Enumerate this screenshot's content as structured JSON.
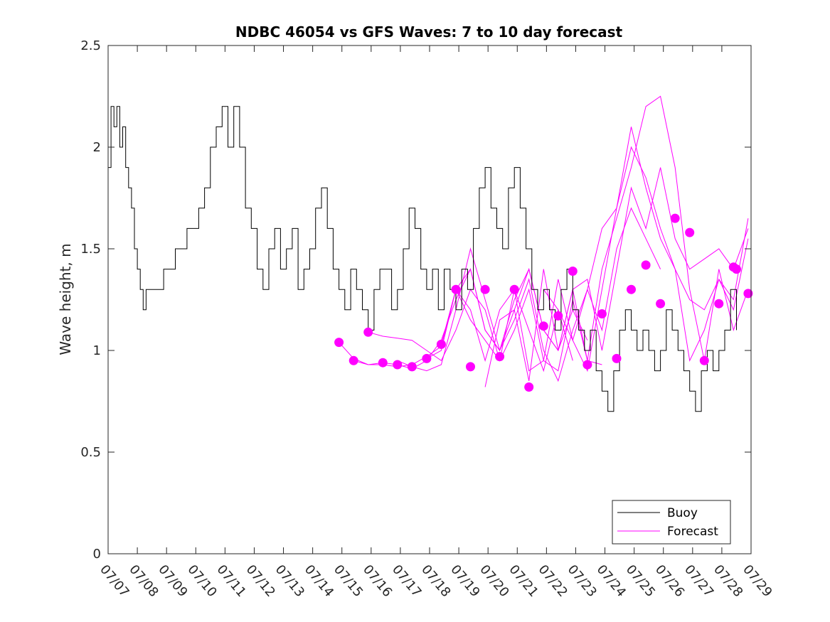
{
  "chart_data": {
    "type": "line",
    "title": "NDBC 46054 vs GFS Waves: 7 to 10 day forecast",
    "xlabel": "",
    "ylabel": "Wave height, m",
    "xlim": [
      "07/07",
      "07/29"
    ],
    "ylim": [
      0,
      2.5
    ],
    "xticks": [
      "07/07",
      "07/08",
      "07/09",
      "07/10",
      "07/11",
      "07/12",
      "07/13",
      "07/14",
      "07/15",
      "07/16",
      "07/17",
      "07/18",
      "07/19",
      "07/20",
      "07/21",
      "07/22",
      "07/23",
      "07/24",
      "07/25",
      "07/26",
      "07/27",
      "07/28",
      "07/29"
    ],
    "yticks": [
      "0",
      "0.5",
      "1",
      "1.5",
      "2",
      "2.5"
    ],
    "grid": false,
    "legend_position": "bottom-right",
    "colors": {
      "buoy": "#000000",
      "forecast": "#ff00ff"
    },
    "series": [
      {
        "name": "Buoy",
        "style": "line",
        "x": [
          0,
          0.1,
          0.2,
          0.3,
          0.4,
          0.5,
          0.6,
          0.7,
          0.8,
          0.9,
          1.0,
          1.1,
          1.2,
          1.3,
          1.5,
          1.7,
          1.9,
          2.1,
          2.3,
          2.5,
          2.7,
          2.9,
          3.1,
          3.3,
          3.5,
          3.7,
          3.9,
          4.1,
          4.3,
          4.5,
          4.7,
          4.9,
          5.1,
          5.3,
          5.5,
          5.7,
          5.9,
          6.1,
          6.3,
          6.5,
          6.7,
          6.9,
          7.1,
          7.3,
          7.5,
          7.7,
          7.9,
          8.1,
          8.3,
          8.5,
          8.7,
          8.9,
          9.1,
          9.3,
          9.5,
          9.7,
          9.9,
          10.1,
          10.3,
          10.5,
          10.7,
          10.9,
          11.1,
          11.3,
          11.5,
          11.7,
          11.9,
          12.1,
          12.3,
          12.5,
          12.7,
          12.9,
          13.1,
          13.3,
          13.5,
          13.7,
          13.9,
          14.1,
          14.3,
          14.5,
          14.7,
          14.9,
          15.1,
          15.3,
          15.5,
          15.7,
          15.9,
          16.1,
          16.3,
          16.5,
          16.7,
          16.9,
          17.1,
          17.3,
          17.5,
          17.7,
          17.9,
          18.1,
          18.3,
          18.5,
          18.7,
          18.9,
          19.1,
          19.3,
          19.5,
          19.7,
          19.9,
          20.1,
          20.3,
          20.5,
          20.7,
          20.9,
          21.1,
          21.3,
          21.5
        ],
        "y": [
          1.9,
          2.2,
          2.1,
          2.2,
          2.0,
          2.1,
          1.9,
          1.8,
          1.7,
          1.5,
          1.4,
          1.3,
          1.2,
          1.3,
          1.3,
          1.3,
          1.4,
          1.4,
          1.5,
          1.5,
          1.6,
          1.6,
          1.7,
          1.8,
          2.0,
          2.1,
          2.2,
          2.0,
          2.2,
          2.0,
          1.7,
          1.6,
          1.4,
          1.3,
          1.5,
          1.6,
          1.4,
          1.5,
          1.6,
          1.3,
          1.4,
          1.5,
          1.7,
          1.8,
          1.6,
          1.4,
          1.3,
          1.2,
          1.4,
          1.3,
          1.2,
          1.1,
          1.3,
          1.4,
          1.4,
          1.2,
          1.3,
          1.5,
          1.7,
          1.6,
          1.4,
          1.3,
          1.4,
          1.2,
          1.4,
          1.3,
          1.2,
          1.4,
          1.3,
          1.6,
          1.8,
          1.9,
          1.7,
          1.6,
          1.5,
          1.8,
          1.9,
          1.7,
          1.5,
          1.3,
          1.2,
          1.3,
          1.2,
          1.1,
          1.3,
          1.4,
          1.2,
          1.1,
          1.0,
          1.1,
          0.9,
          0.8,
          0.7,
          0.9,
          1.1,
          1.2,
          1.1,
          1.0,
          1.1,
          1.0,
          0.9,
          1.0,
          1.2,
          1.1,
          1.0,
          0.9,
          0.8,
          0.7,
          0.9,
          1.0,
          0.9,
          1.0,
          1.1,
          1.3,
          1.1
        ]
      },
      {
        "name": "Forecast",
        "style": "lines",
        "runs": [
          {
            "x": [
              7.9,
              8.4,
              8.9,
              9.4,
              9.9,
              10.4,
              10.9,
              11.4,
              11.9,
              12.4,
              12.9,
              13.4,
              13.9,
              14.4,
              14.9,
              15.4,
              15.9
            ],
            "y": [
              1.04,
              0.96,
              0.93,
              0.93,
              0.92,
              0.93,
              0.97,
              1.02,
              1.3,
              1.15,
              1.05,
              0.95,
              1.3,
              1.1,
              0.9,
              1.2,
              0.95
            ]
          },
          {
            "x": [
              8.4,
              8.9,
              9.4,
              9.9,
              10.4,
              10.9,
              11.4,
              11.9,
              12.4,
              12.9,
              13.4,
              13.9,
              14.4,
              14.9,
              15.4,
              15.9,
              16.4
            ],
            "y": [
              0.95,
              0.93,
              0.94,
              0.93,
              0.91,
              0.95,
              1.05,
              1.25,
              1.4,
              1.1,
              1.0,
              1.2,
              1.4,
              1.1,
              1.0,
              1.2,
              1.05
            ]
          },
          {
            "x": [
              8.9,
              9.4,
              9.9,
              10.4,
              10.9,
              11.4,
              11.9,
              12.4,
              12.9,
              13.4,
              13.9,
              14.4,
              14.9,
              15.4,
              15.9,
              16.4,
              16.9
            ],
            "y": [
              1.09,
              1.07,
              1.06,
              1.05,
              1.0,
              0.95,
              1.1,
              1.3,
              1.2,
              0.95,
              1.1,
              1.3,
              0.95,
              0.9,
              1.25,
              0.95,
              0.93
            ]
          },
          {
            "x": [
              9.9,
              10.4,
              10.9,
              11.4,
              11.9,
              12.4,
              12.9,
              13.4,
              13.9,
              14.4,
              14.9,
              15.4,
              15.9,
              16.4,
              16.9,
              17.4,
              17.9,
              18.4,
              18.9
            ],
            "y": [
              0.95,
              0.92,
              0.9,
              0.93,
              1.2,
              1.5,
              1.25,
              1.0,
              1.15,
              1.35,
              1.0,
              0.85,
              1.1,
              1.3,
              1.1,
              1.5,
              1.7,
              1.55,
              1.4
            ]
          },
          {
            "x": [
              10.9,
              11.4,
              11.9,
              12.4,
              12.9,
              13.4,
              13.9,
              14.4,
              14.9,
              15.4,
              15.9,
              16.4,
              16.9,
              17.4,
              17.9,
              18.4,
              18.9,
              19.4,
              19.9,
              20.4,
              20.9,
              21.4,
              21.9
            ],
            "y": [
              0.96,
              1.0,
              1.3,
              1.4,
              1.1,
              1.0,
              1.25,
              1.4,
              1.1,
              1.0,
              1.3,
              1.35,
              1.0,
              1.4,
              1.8,
              1.6,
              1.9,
              1.55,
              1.4,
              1.45,
              1.5,
              1.4,
              1.6
            ]
          },
          {
            "x": [
              11.4,
              11.9,
              12.4,
              12.9,
              13.4,
              13.9,
              14.4,
              14.9,
              15.4,
              15.9,
              16.4,
              16.9,
              17.4,
              17.9,
              18.4,
              18.9,
              19.4,
              19.9,
              20.4,
              20.9,
              21.4,
              21.9
            ],
            "y": [
              1.03,
              1.3,
              1.2,
              0.95,
              1.2,
              1.3,
              0.9,
              0.95,
              1.35,
              1.05,
              0.9,
              1.3,
              1.7,
              2.0,
              1.85,
              1.6,
              1.4,
              1.25,
              1.2,
              1.35,
              1.25,
              1.65
            ]
          },
          {
            "x": [
              12.9,
              13.4,
              13.9,
              14.4,
              14.9,
              15.4,
              15.9,
              16.4,
              16.9,
              17.4,
              17.9,
              18.4,
              18.9,
              19.4,
              19.9,
              20.4,
              20.9,
              21.4,
              21.9
            ],
            "y": [
              0.82,
              1.15,
              1.2,
              0.85,
              1.4,
              1.0,
              1.3,
              0.95,
              1.4,
              1.65,
              1.9,
              2.2,
              2.25,
              1.9,
              1.3,
              0.95,
              1.4,
              1.1,
              1.3
            ]
          },
          {
            "x": [
              14.9,
              15.4,
              15.9,
              16.4,
              16.9,
              17.4,
              17.9,
              18.4,
              18.9,
              19.4,
              19.9,
              20.4,
              20.9,
              21.4,
              21.9
            ],
            "y": [
              1.3,
              1.2,
              1.05,
              1.3,
              1.6,
              1.7,
              2.1,
              1.8,
              1.55,
              1.4,
              0.95,
              1.1,
              1.35,
              1.2,
              1.55
            ]
          }
        ],
        "markers_x": [
          7.9,
          8.4,
          8.9,
          9.4,
          9.9,
          10.4,
          10.9,
          11.4,
          11.9,
          12.4,
          12.9,
          13.4,
          13.9,
          14.4,
          14.9,
          15.4,
          15.9,
          16.4,
          16.9,
          17.4,
          17.9,
          18.4,
          18.9,
          19.4,
          19.9,
          20.4,
          20.9,
          21.4
        ],
        "markers_y": [
          1.04,
          0.95,
          1.09,
          0.94,
          0.93,
          0.92,
          0.96,
          1.03,
          1.3,
          0.92,
          1.3,
          0.97,
          1.3,
          0.82,
          1.12,
          1.17,
          1.39,
          0.93,
          1.18,
          0.96,
          1.3,
          1.42,
          1.23,
          1.65,
          1.58,
          0.95,
          1.23,
          1.41
        ]
      }
    ],
    "extra_markers": {
      "x": [
        21.5,
        21.9
      ],
      "y": [
        1.4,
        1.28
      ]
    }
  }
}
